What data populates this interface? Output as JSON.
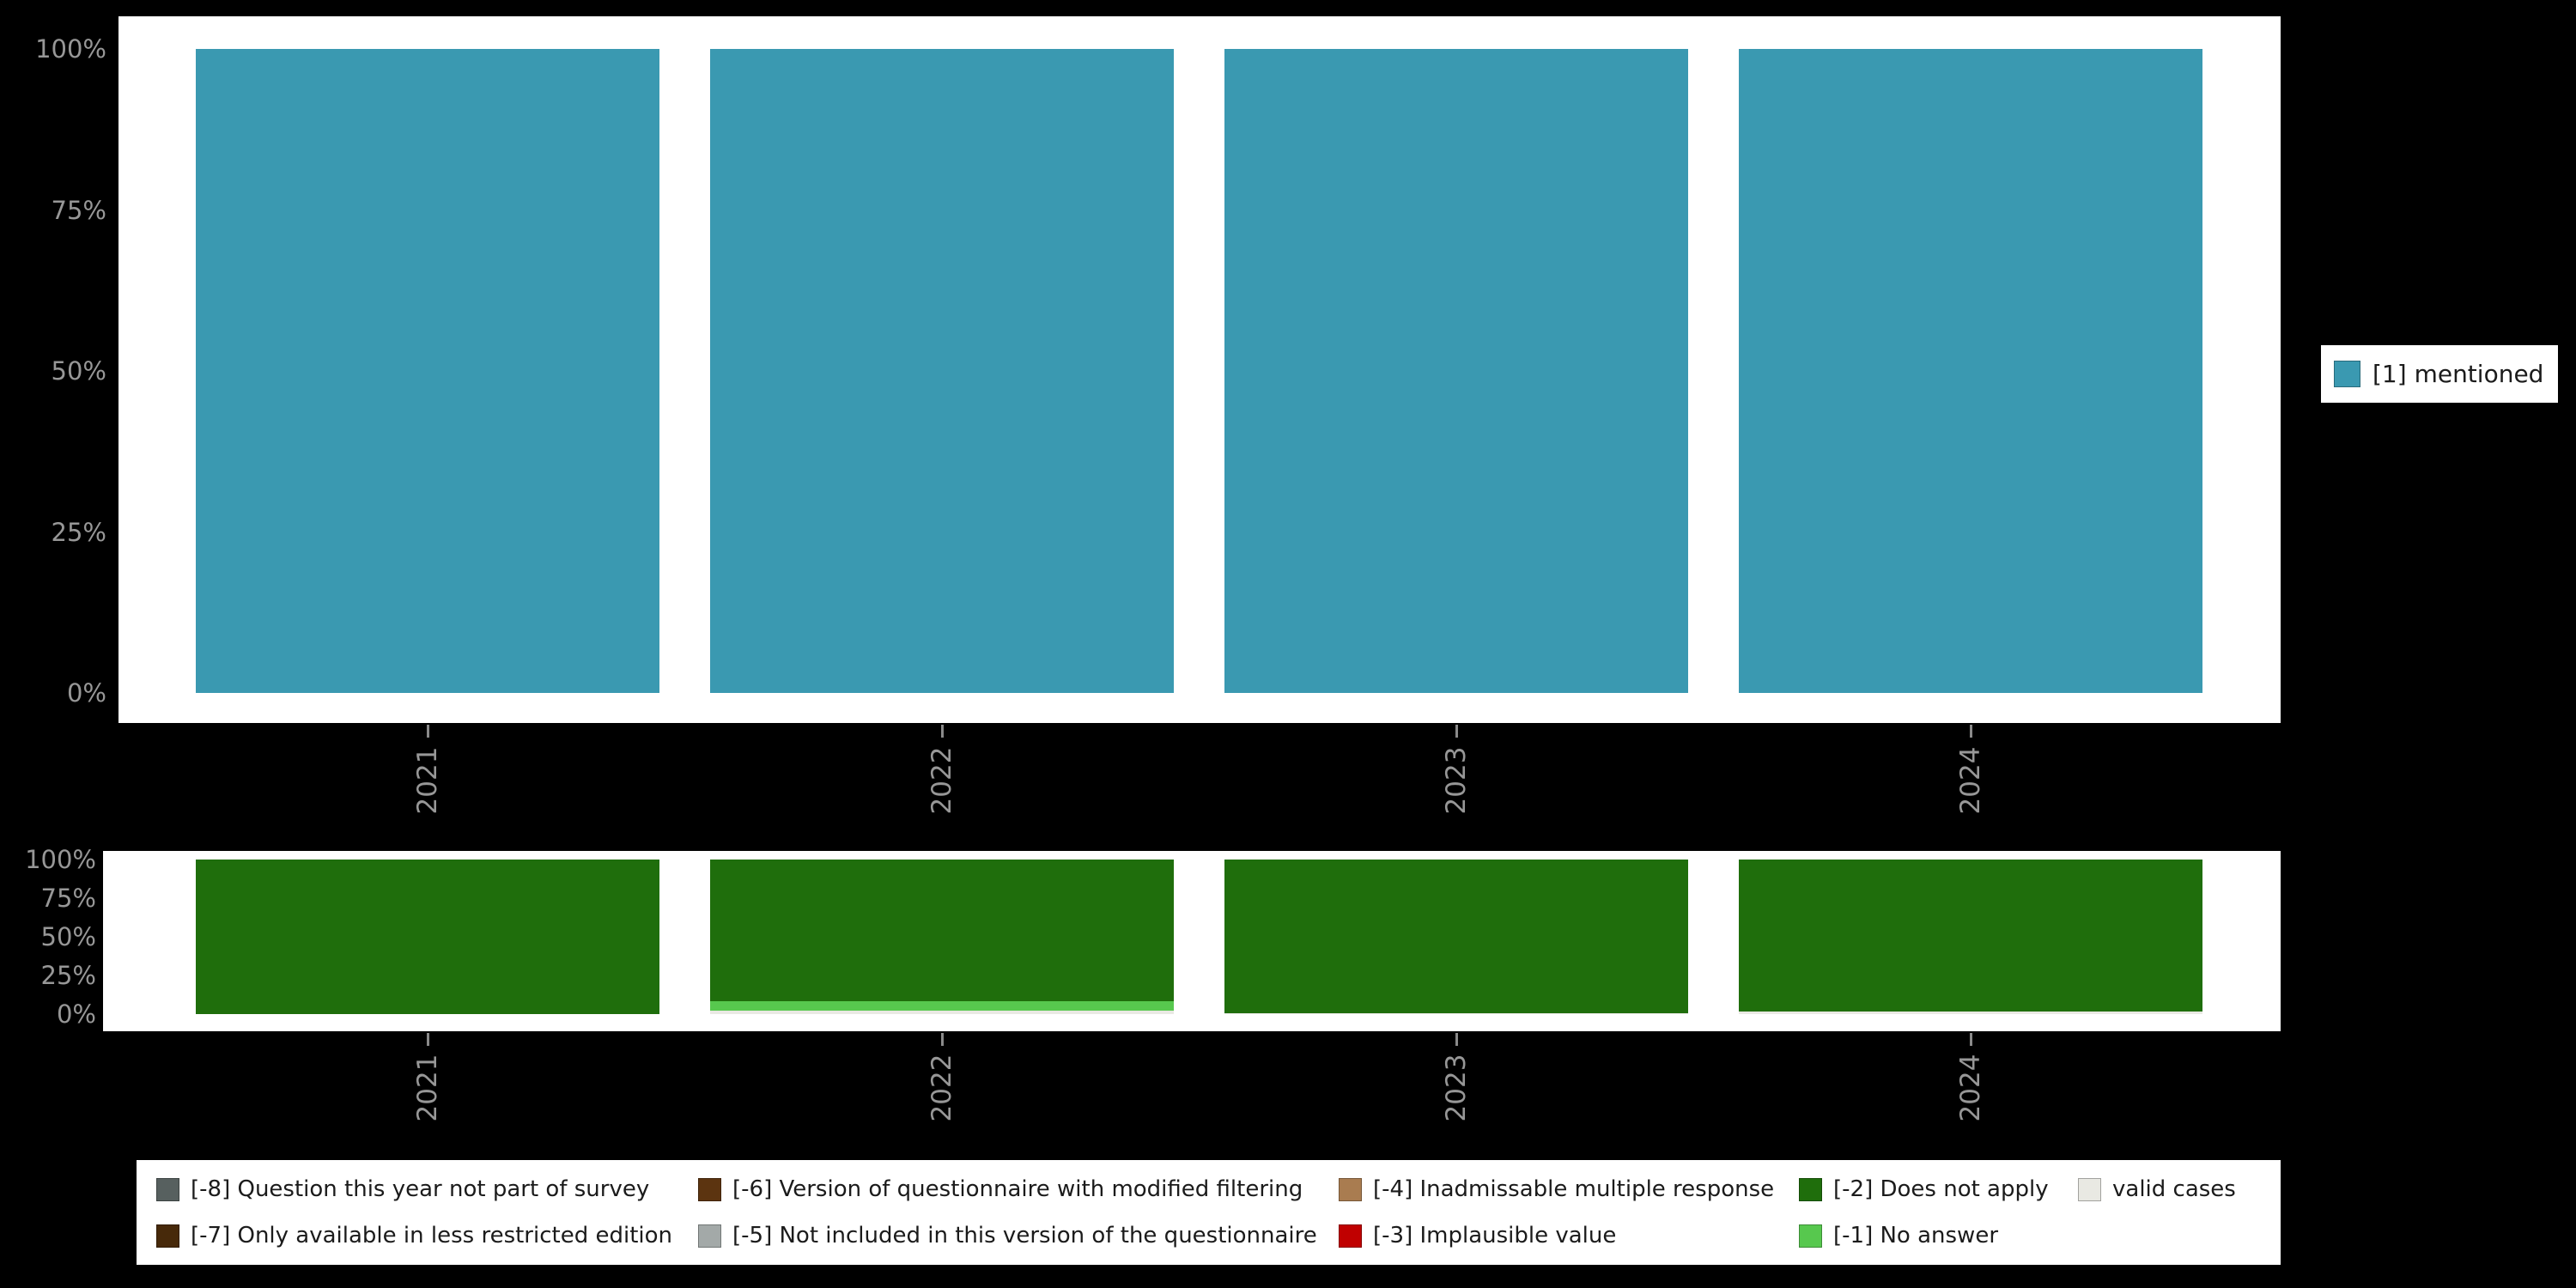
{
  "background": "#000000",
  "panel_color": "#ffffff",
  "axis_text_color": "#979797",
  "chart_data": [
    {
      "type": "bar",
      "stacked": true,
      "categories": [
        "2021",
        "2022",
        "2023",
        "2024"
      ],
      "series": [
        {
          "name": "[1] mentioned",
          "color": "#3a99b1",
          "values": [
            100,
            100,
            100,
            100
          ]
        }
      ],
      "ylim": [
        0,
        100
      ],
      "yticks": [
        "0%",
        "25%",
        "50%",
        "75%",
        "100%"
      ],
      "grid": false,
      "legend_position": "right",
      "title": "",
      "xlabel": "",
      "ylabel": ""
    },
    {
      "type": "bar",
      "stacked": true,
      "stack_order": "bottom_to_top",
      "categories": [
        "2021",
        "2022",
        "2023",
        "2024"
      ],
      "series": [
        {
          "name": "valid cases",
          "color": "#e9e9e3",
          "values": [
            0,
            2.5,
            0.5,
            1.5
          ]
        },
        {
          "name": "[-1] No answer",
          "color": "#57c84e",
          "values": [
            0,
            6,
            0,
            0
          ]
        },
        {
          "name": "[-2] Does not apply",
          "color": "#1f6e0c",
          "values": [
            100,
            91.5,
            99.5,
            98.5
          ]
        }
      ],
      "ylim": [
        0,
        100
      ],
      "yticks": [
        "0%",
        "25%",
        "50%",
        "75%",
        "100%"
      ],
      "grid": false,
      "legend_position": "bottom",
      "title": "",
      "xlabel": "",
      "ylabel": ""
    }
  ],
  "top_legend": {
    "label": "[1] mentioned",
    "color": "#3a99b1"
  },
  "bottom_legend": {
    "columns": [
      [
        {
          "label": "[-8] Question this year not part of survey",
          "color": "#57605f"
        },
        {
          "label": "[-7] Only available in less restricted edition",
          "color": "#47290a"
        }
      ],
      [
        {
          "label": "[-6] Version of questionnaire with modified filtering",
          "color": "#5c3410"
        },
        {
          "label": "[-5] Not included in this version of the questionnaire",
          "color": "#a3a9a8"
        }
      ],
      [
        {
          "label": "[-4] Inadmissable multiple response",
          "color": "#a97c50"
        },
        {
          "label": "[-3] Implausible value",
          "color": "#c00000"
        }
      ],
      [
        {
          "label": "[-2] Does not apply",
          "color": "#1f6e0c"
        },
        {
          "label": "[-1] No answer",
          "color": "#57c84e"
        }
      ],
      [
        {
          "label": "valid cases",
          "color": "#e9e9e3"
        }
      ]
    ]
  }
}
